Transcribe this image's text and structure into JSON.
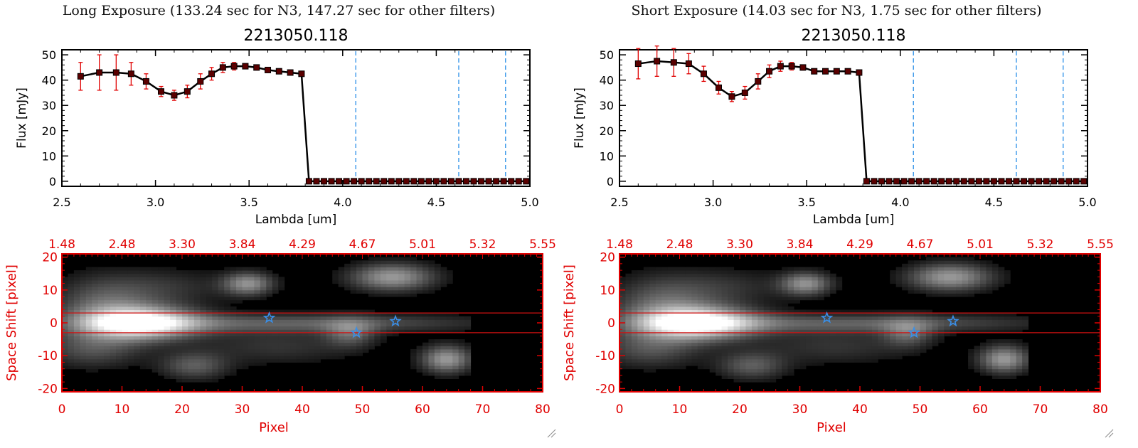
{
  "panels": [
    {
      "title": "Long Exposure (133.24 sec for N3, 147.27 sec for other filters)",
      "object_id": "2213050.118",
      "chart_data": [
        {
          "type": "line",
          "title": "2213050.118",
          "xlabel": "Lambda [um]",
          "ylabel": "Flux [mJy]",
          "xlim": [
            2.5,
            5.0
          ],
          "ylim": [
            -2,
            52
          ],
          "xticks": [
            "2.5",
            "3.0",
            "3.5",
            "4.0",
            "4.5",
            "5.0"
          ],
          "yticks": [
            "0",
            "10",
            "20",
            "30",
            "40",
            "50"
          ],
          "vlines": [
            4.07,
            4.62,
            4.87
          ],
          "x": [
            2.6,
            2.7,
            2.79,
            2.87,
            2.95,
            3.03,
            3.1,
            3.17,
            3.24,
            3.3,
            3.36,
            3.42,
            3.48,
            3.54,
            3.6,
            3.66,
            3.72,
            3.78,
            3.82,
            3.86,
            3.9,
            3.94,
            3.98,
            4.02,
            4.06,
            4.1,
            4.14,
            4.18,
            4.22,
            4.26,
            4.3,
            4.34,
            4.38,
            4.42,
            4.46,
            4.5,
            4.54,
            4.58,
            4.62,
            4.66,
            4.7,
            4.74,
            4.78,
            4.82,
            4.86,
            4.9,
            4.94,
            4.98
          ],
          "y": [
            41.5,
            43,
            43,
            42.5,
            39.5,
            35.5,
            34,
            35.5,
            39.5,
            42.5,
            45,
            45.5,
            45.5,
            45,
            44,
            43.5,
            43,
            42.5,
            0,
            0,
            0,
            0,
            0,
            0,
            0,
            0,
            0,
            0,
            0,
            0,
            0,
            0,
            0,
            0,
            0,
            0,
            0,
            0,
            0,
            0,
            0,
            0,
            0,
            0,
            0,
            0,
            0,
            0
          ],
          "err": [
            5.5,
            7,
            7,
            4.5,
            3,
            2,
            2,
            2.5,
            3,
            2.5,
            2,
            1.5,
            1,
            1,
            1,
            1,
            1,
            1,
            0,
            0,
            0,
            0,
            0,
            0,
            0,
            0,
            0,
            0,
            0,
            0,
            0,
            0,
            0,
            0,
            0,
            0,
            0,
            0,
            0,
            0,
            0,
            0,
            0,
            0,
            0,
            0,
            0,
            0
          ]
        },
        {
          "type": "heatmap",
          "xlabel": "Pixel",
          "ylabel": "Space Shift [pixel]",
          "xlim": [
            0,
            80
          ],
          "ylim": [
            -21,
            21
          ],
          "xticks": [
            "0",
            "10",
            "20",
            "30",
            "40",
            "50",
            "60",
            "70",
            "80"
          ],
          "yticks": [
            "-20",
            "-10",
            "0",
            "10",
            "20"
          ],
          "top_ticks": [
            "1.48",
            "2.48",
            "3.30",
            "3.84",
            "4.29",
            "4.67",
            "5.01",
            "5.32",
            "5.55"
          ],
          "hlines": [
            3,
            -3
          ],
          "data_extent_x": 68,
          "stars": [
            {
              "x": 34.5,
              "y": 1.5
            },
            {
              "x": 49,
              "y": -3
            },
            {
              "x": 55.5,
              "y": 0.5
            }
          ],
          "blobs": [
            {
              "x": 13,
              "y": 0,
              "sx": 7,
              "sy": 3.5,
              "a": 1.0
            },
            {
              "x": 40,
              "y": 0,
              "sx": 22,
              "sy": 2,
              "a": 0.35
            },
            {
              "x": 7,
              "y": 6,
              "sx": 6,
              "sy": 6,
              "a": 0.35
            },
            {
              "x": 5,
              "y": -8,
              "sx": 6,
              "sy": 4,
              "a": 0.3
            },
            {
              "x": 31,
              "y": 12,
              "sx": 3,
              "sy": 2.5,
              "a": 0.55
            },
            {
              "x": 55,
              "y": 14,
              "sx": 5,
              "sy": 3,
              "a": 0.6
            },
            {
              "x": 22,
              "y": -13,
              "sx": 4,
              "sy": 3,
              "a": 0.35
            },
            {
              "x": 64,
              "y": -11,
              "sx": 3,
              "sy": 3,
              "a": 0.6
            },
            {
              "x": 48,
              "y": -3,
              "sx": 3,
              "sy": 3,
              "a": 0.35
            },
            {
              "x": 36,
              "y": -7,
              "sx": 9,
              "sy": 4,
              "a": 0.2
            },
            {
              "x": 18,
              "y": 11,
              "sx": 7,
              "sy": 4,
              "a": 0.18
            }
          ]
        }
      ]
    },
    {
      "title": "Short Exposure (14.03 sec for N3, 1.75 sec for other filters)",
      "object_id": "2213050.118",
      "chart_data": [
        {
          "type": "line",
          "title": "2213050.118",
          "xlabel": "Lambda [um]",
          "ylabel": "Flux [mJy]",
          "xlim": [
            2.5,
            5.0
          ],
          "ylim": [
            -2,
            52
          ],
          "xticks": [
            "2.5",
            "3.0",
            "3.5",
            "4.0",
            "4.5",
            "5.0"
          ],
          "yticks": [
            "0",
            "10",
            "20",
            "30",
            "40",
            "50"
          ],
          "vlines": [
            4.07,
            4.62,
            4.87
          ],
          "x": [
            2.6,
            2.7,
            2.79,
            2.87,
            2.95,
            3.03,
            3.1,
            3.17,
            3.24,
            3.3,
            3.36,
            3.42,
            3.48,
            3.54,
            3.6,
            3.66,
            3.72,
            3.78,
            3.82,
            3.86,
            3.9,
            3.94,
            3.98,
            4.02,
            4.06,
            4.1,
            4.14,
            4.18,
            4.22,
            4.26,
            4.3,
            4.34,
            4.38,
            4.42,
            4.46,
            4.5,
            4.54,
            4.58,
            4.62,
            4.66,
            4.7,
            4.74,
            4.78,
            4.82,
            4.86,
            4.9,
            4.94,
            4.98
          ],
          "y": [
            46.5,
            47.5,
            47,
            46.5,
            42.5,
            37,
            33.5,
            35,
            39.5,
            43.5,
            45.5,
            45.5,
            45,
            43.5,
            43.5,
            43.5,
            43.5,
            43,
            0,
            0,
            0,
            0,
            0,
            0,
            0,
            0,
            0,
            0,
            0,
            0,
            0,
            0,
            0,
            0,
            0,
            0,
            0,
            0,
            0,
            0,
            0,
            0,
            0,
            0,
            0,
            0,
            0,
            0
          ],
          "err": [
            6,
            6,
            5.5,
            4,
            3,
            2.5,
            2,
            2.5,
            3,
            2.5,
            2,
            1.5,
            1,
            1,
            1,
            1,
            1,
            1,
            0,
            0,
            0,
            0,
            0,
            0,
            0,
            0,
            0,
            0,
            0,
            0,
            0,
            0,
            0,
            0,
            0,
            0,
            0,
            0,
            0,
            0,
            0,
            0,
            0,
            0,
            0,
            0,
            0,
            0
          ]
        },
        {
          "type": "heatmap",
          "xlabel": "Pixel",
          "ylabel": "Space Shift [pixel]",
          "xlim": [
            0,
            80
          ],
          "ylim": [
            -21,
            21
          ],
          "xticks": [
            "0",
            "10",
            "20",
            "30",
            "40",
            "50",
            "60",
            "70",
            "80"
          ],
          "yticks": [
            "-20",
            "-10",
            "0",
            "10",
            "20"
          ],
          "top_ticks": [
            "1.48",
            "2.48",
            "3.30",
            "3.84",
            "4.29",
            "4.67",
            "5.01",
            "5.32",
            "5.55"
          ],
          "hlines": [
            3,
            -3
          ],
          "data_extent_x": 68,
          "stars": [
            {
              "x": 34.5,
              "y": 1.5
            },
            {
              "x": 49,
              "y": -3
            },
            {
              "x": 55.5,
              "y": 0.5
            }
          ],
          "blobs": [
            {
              "x": 13,
              "y": 0,
              "sx": 7,
              "sy": 3.5,
              "a": 1.0
            },
            {
              "x": 40,
              "y": 0,
              "sx": 22,
              "sy": 2,
              "a": 0.35
            },
            {
              "x": 7,
              "y": 6,
              "sx": 6,
              "sy": 6,
              "a": 0.35
            },
            {
              "x": 5,
              "y": -8,
              "sx": 6,
              "sy": 4,
              "a": 0.3
            },
            {
              "x": 31,
              "y": 12,
              "sx": 3,
              "sy": 2.5,
              "a": 0.55
            },
            {
              "x": 55,
              "y": 14,
              "sx": 5,
              "sy": 3,
              "a": 0.6
            },
            {
              "x": 22,
              "y": -13,
              "sx": 4,
              "sy": 3,
              "a": 0.35
            },
            {
              "x": 64,
              "y": -11,
              "sx": 3,
              "sy": 3,
              "a": 0.6
            },
            {
              "x": 48,
              "y": -3,
              "sx": 3,
              "sy": 3,
              "a": 0.35
            },
            {
              "x": 36,
              "y": -7,
              "sx": 9,
              "sy": 4,
              "a": 0.2
            },
            {
              "x": 18,
              "y": 11,
              "sx": 7,
              "sy": 4,
              "a": 0.18
            }
          ]
        }
      ]
    }
  ],
  "colors": {
    "axis_black": "#000000",
    "axis_red": "#e00000",
    "marker": "#5a0000",
    "errorbar": "#e00000",
    "vline": "#2a8fe8",
    "star": "#3a8fe8",
    "hline": "#d01010",
    "heatmap_bg": "#000000"
  }
}
